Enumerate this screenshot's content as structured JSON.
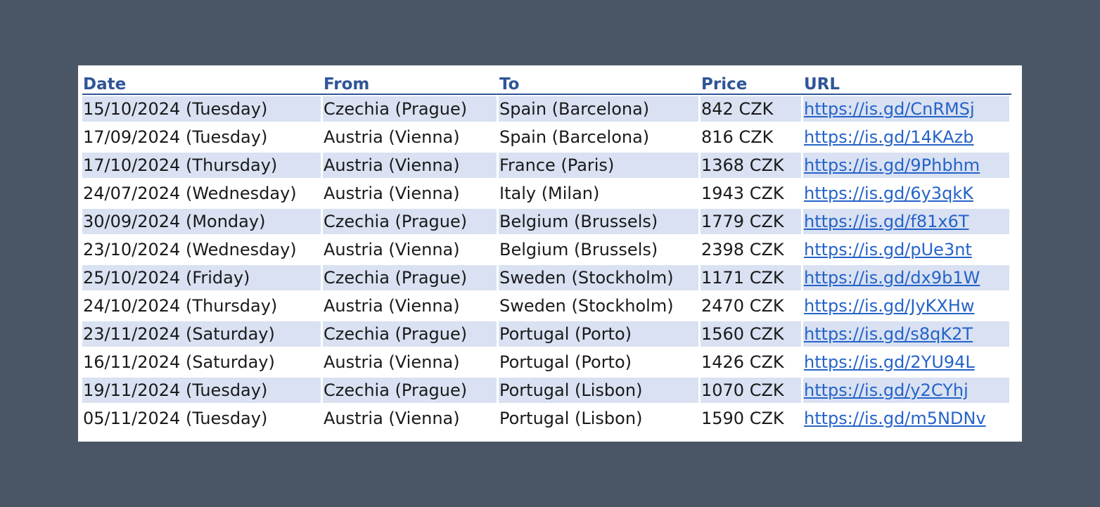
{
  "table": {
    "headers": {
      "date": "Date",
      "from": "From",
      "to": "To",
      "price": "Price",
      "url": "URL"
    },
    "rows": [
      {
        "date": "15/10/2024 (Tuesday)",
        "from": "Czechia (Prague)",
        "to": "Spain (Barcelona)",
        "price": "842 CZK",
        "url": "https://is.gd/CnRMSj"
      },
      {
        "date": "17/09/2024 (Tuesday)",
        "from": "Austria (Vienna)",
        "to": "Spain (Barcelona)",
        "price": "816 CZK",
        "url": "https://is.gd/14KAzb"
      },
      {
        "date": "17/10/2024 (Thursday)",
        "from": "Austria (Vienna)",
        "to": "France (Paris)",
        "price": "1368 CZK",
        "url": "https://is.gd/9Phbhm"
      },
      {
        "date": "24/07/2024 (Wednesday)",
        "from": "Austria (Vienna)",
        "to": "Italy (Milan)",
        "price": "1943 CZK",
        "url": "https://is.gd/6y3qkK"
      },
      {
        "date": "30/09/2024 (Monday)",
        "from": "Czechia (Prague)",
        "to": "Belgium (Brussels)",
        "price": "1779 CZK",
        "url": "https://is.gd/f81x6T"
      },
      {
        "date": "23/10/2024 (Wednesday)",
        "from": "Austria (Vienna)",
        "to": "Belgium (Brussels)",
        "price": "2398 CZK",
        "url": "https://is.gd/pUe3nt"
      },
      {
        "date": "25/10/2024 (Friday)",
        "from": "Czechia (Prague)",
        "to": "Sweden (Stockholm)",
        "price": "1171 CZK",
        "url": "https://is.gd/dx9b1W"
      },
      {
        "date": "24/10/2024 (Thursday)",
        "from": "Austria (Vienna)",
        "to": "Sweden (Stockholm)",
        "price": "2470 CZK",
        "url": "https://is.gd/JyKXHw"
      },
      {
        "date": "23/11/2024 (Saturday)",
        "from": "Czechia (Prague)",
        "to": "Portugal (Porto)",
        "price": "1560 CZK",
        "url": "https://is.gd/s8qK2T"
      },
      {
        "date": "16/11/2024 (Saturday)",
        "from": "Austria (Vienna)",
        "to": "Portugal (Porto)",
        "price": "1426 CZK",
        "url": "https://is.gd/2YU94L"
      },
      {
        "date": "19/11/2024 (Tuesday)",
        "from": "Czechia (Prague)",
        "to": "Portugal (Lisbon)",
        "price": "1070 CZK",
        "url": "https://is.gd/y2CYhj"
      },
      {
        "date": "05/11/2024 (Tuesday)",
        "from": "Austria (Vienna)",
        "to": "Portugal (Lisbon)",
        "price": "1590 CZK",
        "url": "https://is.gd/m5NDNv"
      }
    ]
  },
  "colors": {
    "background": "#4a5666",
    "header_text": "#2f5597",
    "band_fill": "#d9e1f2",
    "link": "#2563c9"
  }
}
